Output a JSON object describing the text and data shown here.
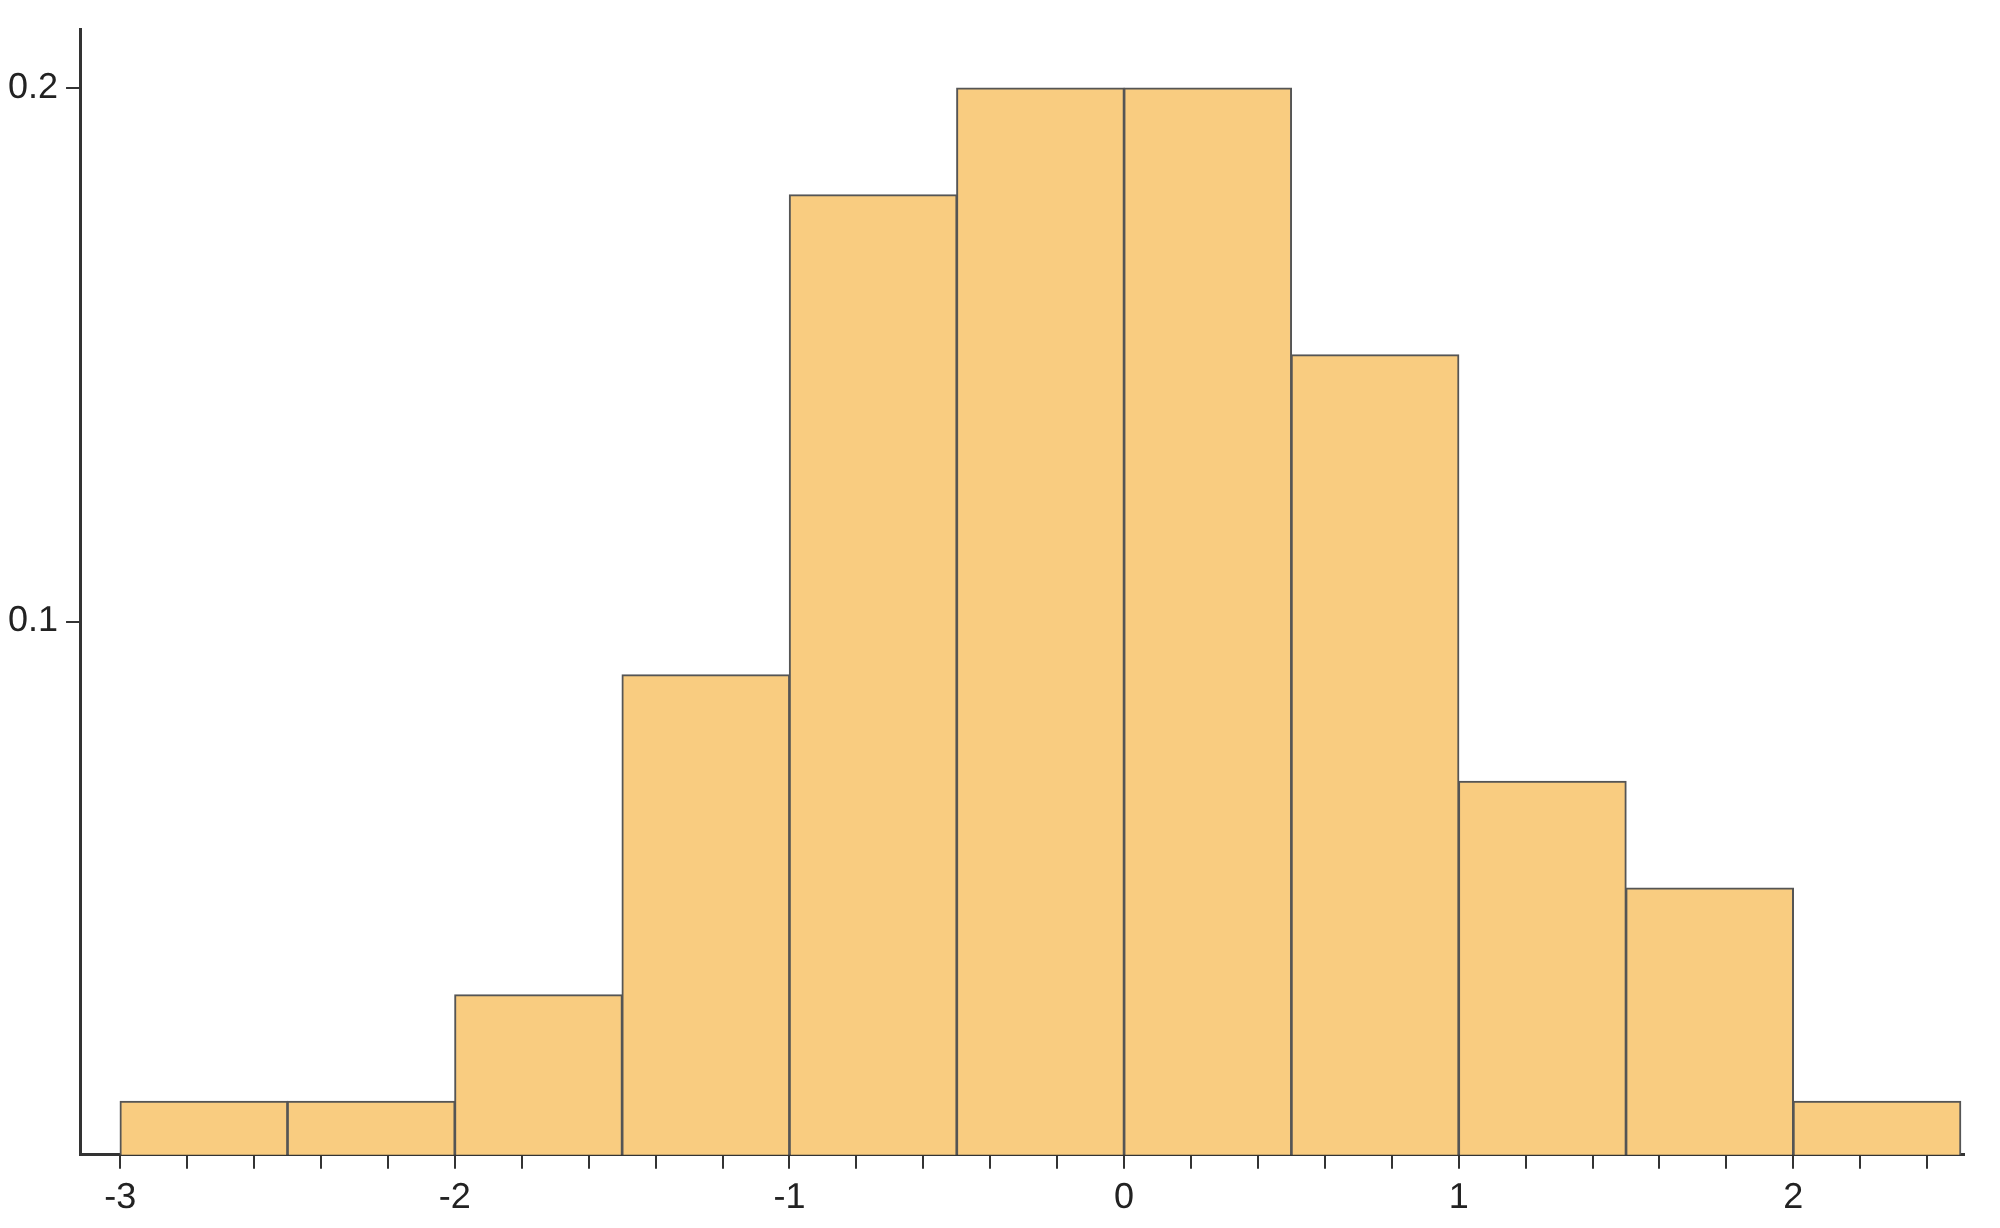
{
  "chart_data": {
    "type": "histogram",
    "bins": [
      -3,
      -2.5,
      -2,
      -1.5,
      -1,
      -0.5,
      0,
      0.5,
      1,
      1.5,
      2,
      2.5
    ],
    "values": [
      0.01,
      0.01,
      0.03,
      0.09,
      0.18,
      0.2,
      0.2,
      0.15,
      0.07,
      0.05,
      0.01
    ],
    "color": "#f9cc80",
    "xlim": [
      -3.12,
      2.51
    ],
    "xticks": [
      -3,
      {
        "value": -2.8,
        "label": null
      },
      {
        "value": -2.6,
        "label": null
      },
      {
        "value": -2.4,
        "label": null
      },
      {
        "value": -2.2,
        "label": null
      },
      -2,
      {
        "value": -1.8,
        "label": null
      },
      {
        "value": -1.6,
        "label": null
      },
      {
        "value": -1.4,
        "label": null
      },
      {
        "value": -1.2,
        "label": null
      },
      -1,
      {
        "value": -0.8,
        "label": null
      },
      {
        "value": -0.6,
        "label": null
      },
      {
        "value": -0.4,
        "label": null
      },
      {
        "value": -0.2,
        "label": null
      },
      0,
      {
        "value": 0.2,
        "label": null
      },
      {
        "value": 0.4,
        "label": null
      },
      {
        "value": 0.6,
        "label": null
      },
      {
        "value": 0.8,
        "label": null
      },
      1,
      {
        "value": 1.2,
        "label": null
      },
      {
        "value": 1.4,
        "label": null
      },
      {
        "value": 1.6,
        "label": null
      },
      {
        "value": 1.8,
        "label": null
      },
      2,
      {
        "value": 2.2,
        "label": null
      },
      {
        "value": 2.4,
        "label": null
      }
    ],
    "ylim": [
      0,
      0.211
    ],
    "yticks": [
      0.1,
      0.2
    ],
    "grid": false,
    "legend": false
  }
}
